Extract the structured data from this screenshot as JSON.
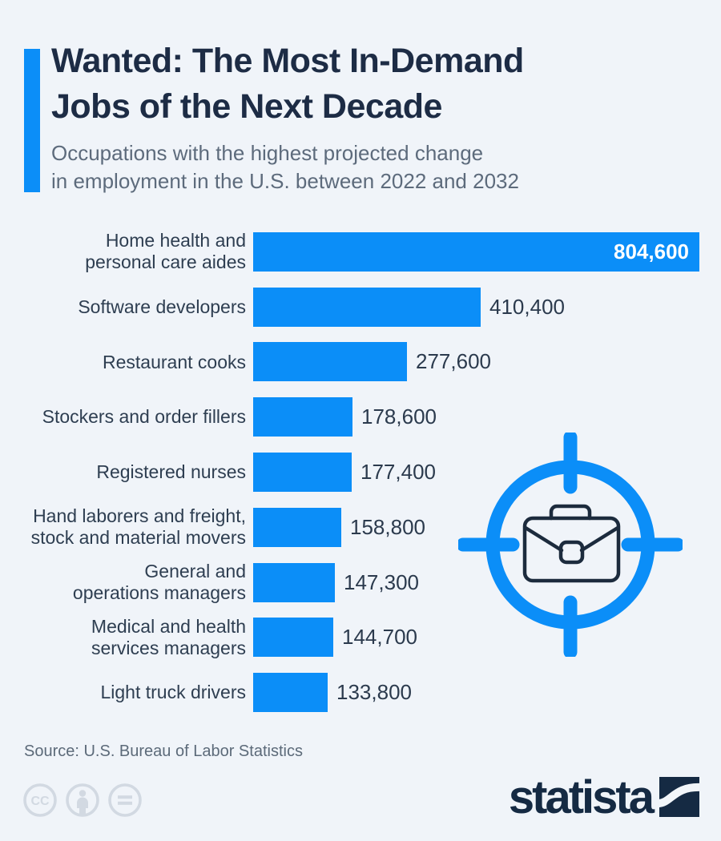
{
  "colors": {
    "background": "#f0f4f9",
    "accent_blue": "#0b8ef8",
    "title_navy": "#1d2c45",
    "subtitle_gray": "#5d6b7c",
    "label_dark": "#2e3e51",
    "value_dark": "#2b3a4d",
    "value_inside_white": "#ffffff",
    "source_gray": "#5c6a79",
    "license_gray": "#d2d9e2",
    "logo_navy": "#152a43",
    "briefcase_navy": "#1c2b3d"
  },
  "header": {
    "title": "Wanted: The Most In-Demand\nJobs of the Next Decade",
    "subtitle": "Occupations with the highest projected change\nin employment in the U.S. between 2022 and 2032"
  },
  "chart_data": {
    "type": "bar",
    "orientation": "horizontal",
    "title": "Occupations with the highest projected change in employment in the U.S. between 2022 and 2032",
    "xlabel": "",
    "ylabel": "",
    "xlim": [
      0,
      804600
    ],
    "grid": false,
    "legend": false,
    "bar_color": "#0b8ef8",
    "categories": [
      "Home health and\npersonal care aides",
      "Software developers",
      "Restaurant cooks",
      "Stockers and order fillers",
      "Registered nurses",
      "Hand laborers and freight,\nstock and material movers",
      "General and\noperations managers",
      "Medical and health\nservices managers",
      "Light truck drivers"
    ],
    "values": [
      804600,
      410400,
      277600,
      178600,
      177400,
      158800,
      147300,
      144700,
      133800
    ],
    "value_labels": [
      "804,600",
      "410,400",
      "277,600",
      "178,600",
      "177,400",
      "158,800",
      "147,300",
      "144,700",
      "133,800"
    ]
  },
  "icons": {
    "center_graphic": "briefcase-target-icon",
    "license": [
      "creative-commons-icon",
      "attribution-icon",
      "no-derivatives-icon"
    ],
    "brand_mark": "statista-logo-square"
  },
  "footer": {
    "source": "Source: U.S. Bureau of Labor Statistics",
    "brand": "statista"
  }
}
